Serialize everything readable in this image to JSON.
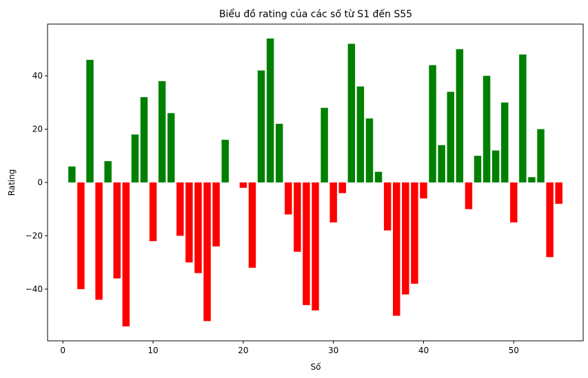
{
  "chart_data": {
    "type": "bar",
    "title": "Biểu đồ rating của các số từ S1 đến S55",
    "xlabel": "Số",
    "ylabel": "Rating",
    "x": [
      1,
      2,
      3,
      4,
      5,
      6,
      7,
      8,
      9,
      10,
      11,
      12,
      13,
      14,
      15,
      16,
      17,
      18,
      19,
      20,
      21,
      22,
      23,
      24,
      25,
      26,
      27,
      28,
      29,
      30,
      31,
      32,
      33,
      34,
      35,
      36,
      37,
      38,
      39,
      40,
      41,
      42,
      43,
      44,
      45,
      46,
      47,
      48,
      49,
      50,
      51,
      52,
      53,
      54,
      55
    ],
    "values": [
      6,
      -40,
      46,
      -44,
      8,
      -36,
      -54,
      18,
      32,
      -22,
      38,
      26,
      -20,
      -30,
      -34,
      -52,
      -24,
      16,
      0,
      -2,
      -32,
      42,
      54,
      22,
      -12,
      -26,
      -46,
      -48,
      28,
      -15,
      -4,
      52,
      36,
      24,
      4,
      -18,
      -50,
      -42,
      -38,
      -6,
      44,
      14,
      34,
      50,
      -10,
      10,
      40,
      12,
      30,
      -15,
      48,
      2,
      20,
      -28,
      -8
    ],
    "xlim": [
      -1.7,
      57.7
    ],
    "ylim": [
      -59.4,
      59.4
    ],
    "xticks": [
      0,
      10,
      20,
      30,
      40,
      50
    ],
    "yticks": [
      -40,
      -20,
      0,
      20,
      40
    ],
    "xtick_labels": [
      "0",
      "10",
      "20",
      "30",
      "40",
      "50"
    ],
    "ytick_labels": [
      "−40",
      "−20",
      "0",
      "20",
      "40"
    ],
    "colors": {
      "positive": "#008000",
      "negative": "#ff0000"
    },
    "grid": false,
    "legend": "none"
  }
}
